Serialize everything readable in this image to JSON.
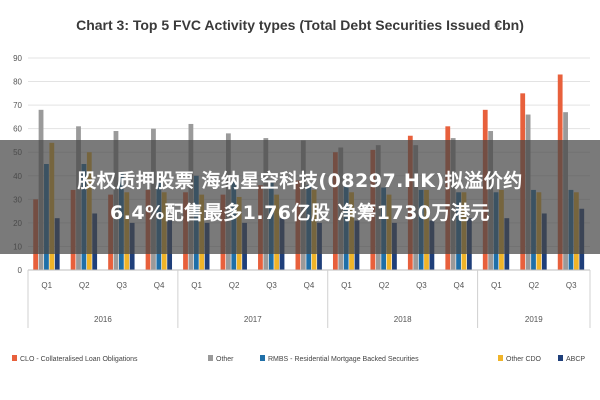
{
  "overlay": {
    "line1": "股权质押股票 海纳星空科技(08297.HK)拟溢价约",
    "line2": "6.4%配售最多1.76亿股 净筹1730万港元"
  },
  "chart_data": {
    "type": "bar",
    "title": "Chart 3: Top 5 FVC Activity types (Total Debt Securities Issued €bn)",
    "ylim": [
      0,
      90
    ],
    "yticks": [
      0,
      10,
      20,
      30,
      40,
      50,
      60,
      70,
      80,
      90
    ],
    "grid": true,
    "legend_position": "bottom",
    "categories": [
      "Q1",
      "Q2",
      "Q3",
      "Q4",
      "Q1",
      "Q2",
      "Q3",
      "Q4",
      "Q1",
      "Q2",
      "Q3",
      "Q4",
      "Q1",
      "Q2",
      "Q3"
    ],
    "groups": [
      {
        "label": "2016",
        "count": 4
      },
      {
        "label": "2017",
        "count": 4
      },
      {
        "label": "2018",
        "count": 4
      },
      {
        "label": "2019",
        "count": 3
      }
    ],
    "series": [
      {
        "name": "CLO - Collateralised Loan Obligations",
        "color": "#e8603c",
        "values": [
          30,
          34,
          32,
          34,
          33,
          32,
          36,
          38,
          50,
          51,
          57,
          61,
          68,
          75,
          83
        ]
      },
      {
        "name": "Other",
        "color": "#9a9a9a",
        "values": [
          68,
          61,
          59,
          60,
          62,
          58,
          56,
          55,
          52,
          53,
          53,
          56,
          59,
          66,
          67
        ]
      },
      {
        "name": "RMBS - Residential Mortgage Backed Securities",
        "color": "#1f6fa8",
        "values": [
          45,
          45,
          41,
          37,
          40,
          38,
          37,
          36,
          36,
          35,
          34,
          33,
          33,
          34,
          34
        ]
      },
      {
        "name": "Other CDO",
        "color": "#f0b429",
        "values": [
          54,
          50,
          33,
          33,
          32,
          31,
          32,
          34,
          33,
          32,
          34,
          33,
          34,
          33,
          33
        ]
      },
      {
        "name": "ABCP",
        "color": "#1f3f7a",
        "values": [
          22,
          24,
          20,
          21,
          20,
          20,
          22,
          20,
          21,
          20,
          21,
          22,
          22,
          24,
          26
        ]
      }
    ]
  }
}
